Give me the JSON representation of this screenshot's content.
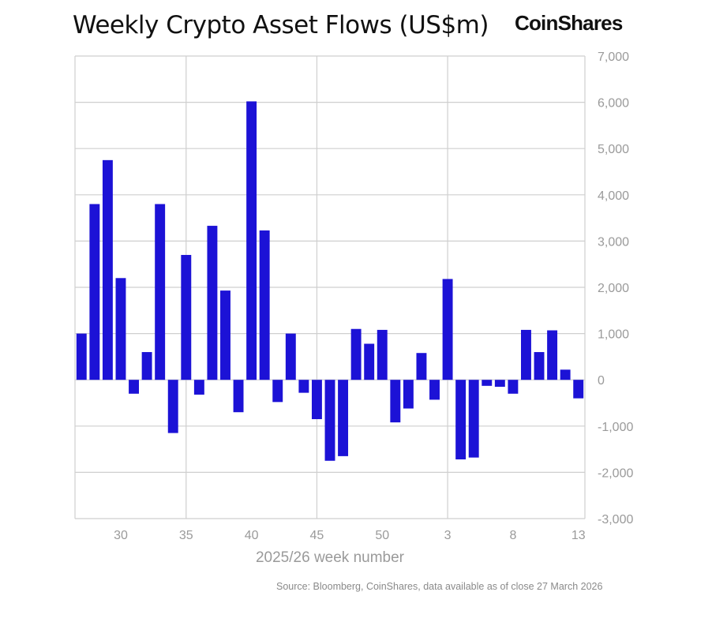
{
  "header": {
    "title": "Weekly Crypto Asset Flows (US$m)",
    "brand": "CoinShares"
  },
  "footer": {
    "source": "Source: Bloomberg, CoinShares, data available as of close 27 March 2026"
  },
  "colors": {
    "bar": "#1c12d6",
    "grid": "#cfcfcf",
    "tick_text": "#9a9a9a"
  },
  "chart_data": {
    "type": "bar",
    "title": "Weekly Crypto Asset Flows (US$m)",
    "xlabel": "2025/26 week number",
    "ylabel": "",
    "ylim": [
      -3000,
      7000
    ],
    "y_ticks": [
      7000,
      6000,
      5000,
      4000,
      3000,
      2000,
      1000,
      0,
      -1000,
      -2000,
      -3000
    ],
    "y_tick_labels": [
      "7,000",
      "6,000",
      "5,000",
      "4,000",
      "3,000",
      "2,000",
      "1,000",
      "0",
      "-1,000",
      "-2,000",
      "-3,000"
    ],
    "y_axis_position": "right",
    "grid": true,
    "legend": "none",
    "categories": [
      "27",
      "28",
      "29",
      "30",
      "31",
      "32",
      "33",
      "34",
      "35",
      "36",
      "37",
      "38",
      "39",
      "40",
      "41",
      "42",
      "43",
      "44",
      "45",
      "46",
      "47",
      "48",
      "49",
      "50",
      "51",
      "52",
      "1",
      "2",
      "3",
      "4",
      "5",
      "6",
      "7",
      "8",
      "9",
      "10",
      "11",
      "12",
      "13"
    ],
    "x_tick_labels": [
      {
        "category": "30",
        "label": "30"
      },
      {
        "category": "35",
        "label": "35"
      },
      {
        "category": "40",
        "label": "40"
      },
      {
        "category": "45",
        "label": "45"
      },
      {
        "category": "50",
        "label": "50"
      },
      {
        "category": "3",
        "label": "3"
      },
      {
        "category": "8",
        "label": "8"
      },
      {
        "category": "13",
        "label": "13"
      }
    ],
    "x_gridlines_at": [
      "35",
      "45",
      "3"
    ],
    "values": [
      1000,
      3800,
      4750,
      2200,
      -300,
      600,
      3800,
      -1150,
      2700,
      -320,
      3330,
      1930,
      -700,
      6020,
      3230,
      -480,
      1000,
      -280,
      -850,
      -1750,
      -1650,
      1100,
      780,
      1080,
      -920,
      -620,
      580,
      -430,
      2180,
      -1720,
      -1680,
      -130,
      -150,
      -300,
      1080,
      600,
      1070,
      220,
      -400
    ]
  }
}
